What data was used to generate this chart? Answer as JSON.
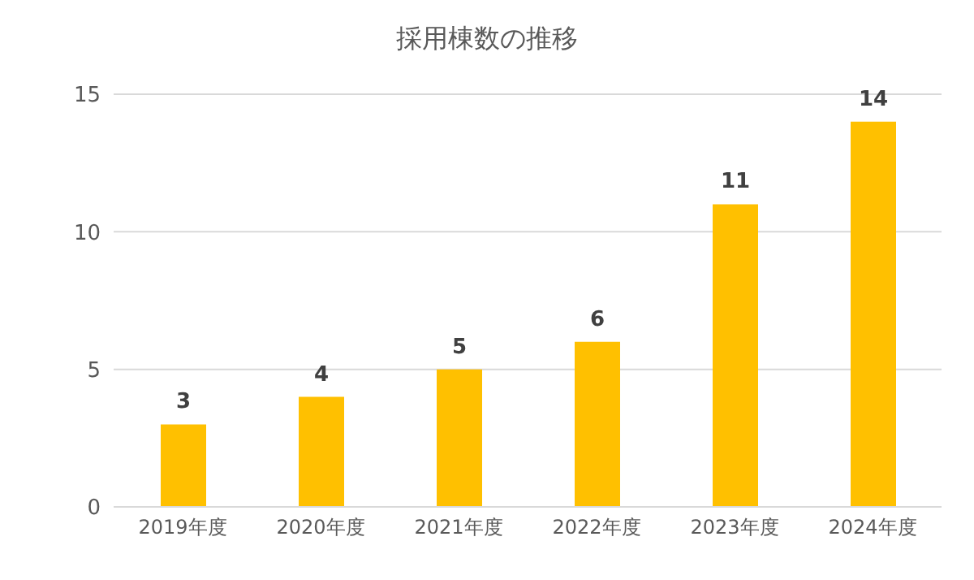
{
  "chart_data": {
    "type": "bar",
    "title": "採用棟数の推移",
    "categories": [
      "2019年度",
      "2020年度",
      "2021年度",
      "2022年度",
      "2023年度",
      "2024年度"
    ],
    "values": [
      3,
      4,
      5,
      6,
      11,
      14
    ],
    "color": "#ffc000",
    "ylim": [
      0,
      15
    ],
    "yticks": [
      0,
      5,
      10,
      15
    ],
    "grid": "y",
    "data_labels": true
  }
}
